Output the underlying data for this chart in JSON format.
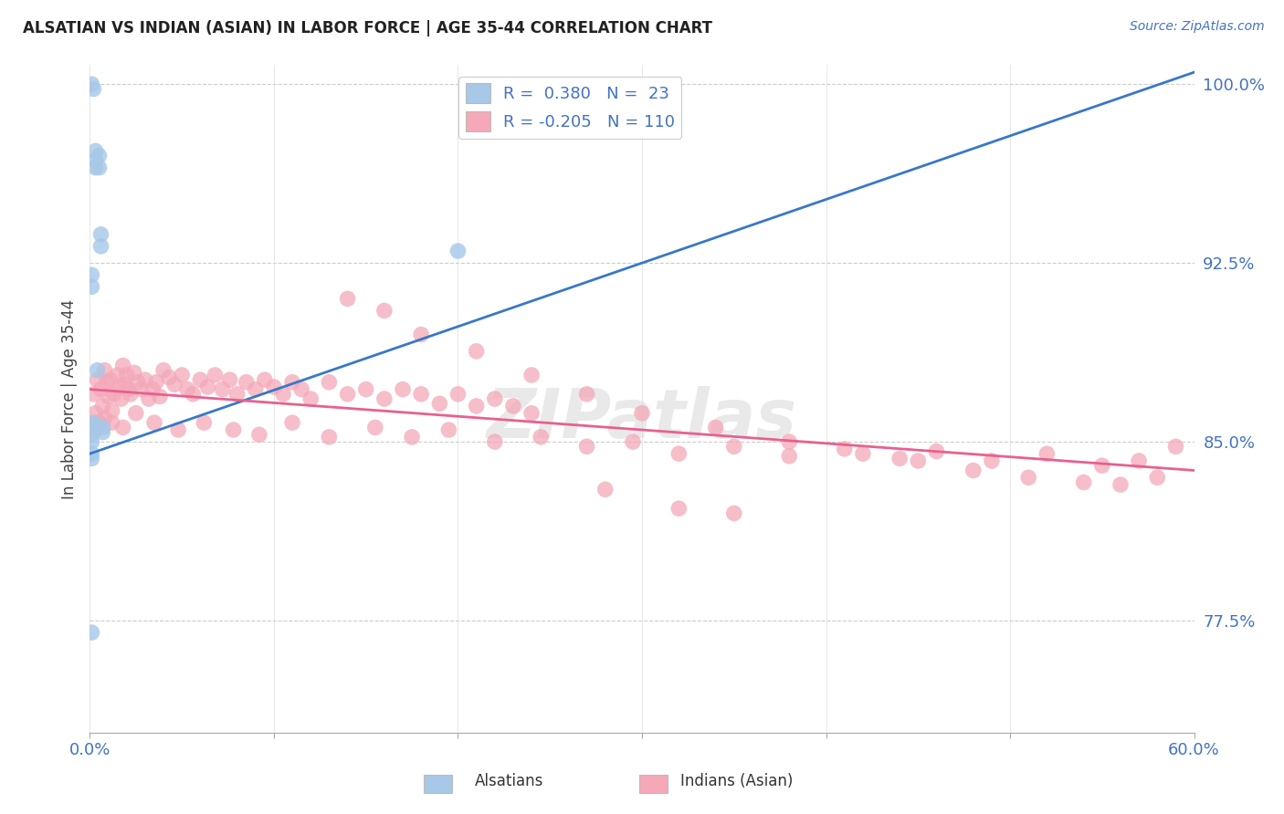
{
  "title": "ALSATIAN VS INDIAN (ASIAN) IN LABOR FORCE | AGE 35-44 CORRELATION CHART",
  "source": "Source: ZipAtlas.com",
  "ylabel": "In Labor Force | Age 35-44",
  "xlim": [
    0.0,
    0.6
  ],
  "ylim": [
    0.728,
    1.008
  ],
  "xticks": [
    0.0,
    0.1,
    0.2,
    0.3,
    0.4,
    0.5,
    0.6
  ],
  "xticklabels": [
    "0.0%",
    "",
    "",
    "",
    "",
    "",
    "60.0%"
  ],
  "yticks": [
    0.775,
    0.85,
    0.925,
    1.0
  ],
  "yticklabels": [
    "77.5%",
    "85.0%",
    "92.5%",
    "100.0%"
  ],
  "blue_color": "#a8c8e8",
  "pink_color": "#f4a8b8",
  "blue_line_color": "#3878c8",
  "pink_line_color": "#e86090",
  "legend_blue_r": "0.380",
  "legend_blue_n": "23",
  "legend_pink_r": "-0.205",
  "legend_pink_n": "110",
  "alsatian_label": "Alsatians",
  "indian_label": "Indians (Asian)",
  "watermark": "ZIPatlas",
  "als_x": [
    0.001,
    0.002,
    0.003,
    0.003,
    0.003,
    0.004,
    0.005,
    0.005,
    0.006,
    0.006,
    0.001,
    0.001,
    0.001,
    0.001,
    0.001,
    0.001,
    0.001,
    0.002,
    0.003,
    0.007,
    0.007,
    0.2,
    0.001
  ],
  "als_y": [
    1.0,
    0.998,
    0.972,
    0.968,
    0.965,
    0.88,
    0.97,
    0.965,
    0.937,
    0.932,
    0.92,
    0.915,
    0.857,
    0.853,
    0.85,
    0.845,
    0.843,
    0.858,
    0.856,
    0.856,
    0.854,
    0.93,
    0.77
  ],
  "ind_x": [
    0.002,
    0.003,
    0.004,
    0.005,
    0.006,
    0.007,
    0.008,
    0.009,
    0.01,
    0.011,
    0.012,
    0.013,
    0.015,
    0.016,
    0.017,
    0.018,
    0.019,
    0.02,
    0.021,
    0.022,
    0.024,
    0.026,
    0.028,
    0.03,
    0.032,
    0.034,
    0.036,
    0.038,
    0.04,
    0.043,
    0.046,
    0.05,
    0.053,
    0.056,
    0.06,
    0.064,
    0.068,
    0.072,
    0.076,
    0.08,
    0.085,
    0.09,
    0.095,
    0.1,
    0.105,
    0.11,
    0.115,
    0.12,
    0.13,
    0.14,
    0.15,
    0.16,
    0.17,
    0.18,
    0.19,
    0.2,
    0.21,
    0.22,
    0.23,
    0.24,
    0.003,
    0.005,
    0.008,
    0.012,
    0.018,
    0.025,
    0.035,
    0.048,
    0.062,
    0.078,
    0.092,
    0.11,
    0.13,
    0.155,
    0.175,
    0.195,
    0.22,
    0.245,
    0.27,
    0.295,
    0.32,
    0.35,
    0.38,
    0.41,
    0.44,
    0.46,
    0.49,
    0.52,
    0.55,
    0.57,
    0.14,
    0.16,
    0.18,
    0.21,
    0.24,
    0.27,
    0.3,
    0.34,
    0.38,
    0.42,
    0.45,
    0.48,
    0.51,
    0.54,
    0.56,
    0.58,
    0.59,
    0.35,
    0.32,
    0.28
  ],
  "ind_y": [
    0.87,
    0.862,
    0.876,
    0.858,
    0.872,
    0.865,
    0.88,
    0.875,
    0.869,
    0.876,
    0.863,
    0.87,
    0.878,
    0.873,
    0.868,
    0.882,
    0.874,
    0.878,
    0.872,
    0.87,
    0.879,
    0.875,
    0.872,
    0.876,
    0.868,
    0.872,
    0.875,
    0.869,
    0.88,
    0.877,
    0.874,
    0.878,
    0.872,
    0.87,
    0.876,
    0.873,
    0.878,
    0.872,
    0.876,
    0.87,
    0.875,
    0.872,
    0.876,
    0.873,
    0.87,
    0.875,
    0.872,
    0.868,
    0.875,
    0.87,
    0.872,
    0.868,
    0.872,
    0.87,
    0.866,
    0.87,
    0.865,
    0.868,
    0.865,
    0.862,
    0.855,
    0.858,
    0.86,
    0.858,
    0.856,
    0.862,
    0.858,
    0.855,
    0.858,
    0.855,
    0.853,
    0.858,
    0.852,
    0.856,
    0.852,
    0.855,
    0.85,
    0.852,
    0.848,
    0.85,
    0.845,
    0.848,
    0.844,
    0.847,
    0.843,
    0.846,
    0.842,
    0.845,
    0.84,
    0.842,
    0.91,
    0.905,
    0.895,
    0.888,
    0.878,
    0.87,
    0.862,
    0.856,
    0.85,
    0.845,
    0.842,
    0.838,
    0.835,
    0.833,
    0.832,
    0.835,
    0.848,
    0.82,
    0.822,
    0.83
  ],
  "blue_line_x0": 0.0,
  "blue_line_x1": 0.6,
  "blue_line_y0": 0.845,
  "blue_line_y1": 1.005,
  "pink_line_x0": 0.0,
  "pink_line_x1": 0.6,
  "pink_line_y0": 0.872,
  "pink_line_y1": 0.838
}
